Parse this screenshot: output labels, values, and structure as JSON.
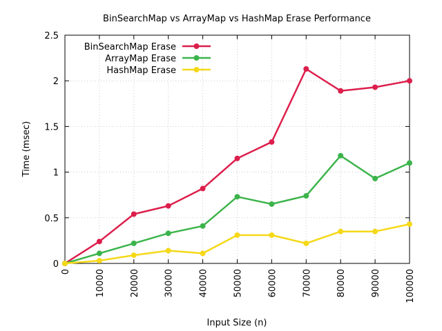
{
  "chart_data": {
    "type": "line",
    "title": "BinSearchMap vs ArrayMap vs HashMap Erase Performance",
    "xlabel": "Input Size (n)",
    "ylabel": "Time (msec)",
    "x": [
      0,
      10000,
      20000,
      30000,
      40000,
      50000,
      60000,
      70000,
      80000,
      90000,
      100000
    ],
    "x_tick_labels": [
      "0",
      "10000",
      "20000",
      "30000",
      "40000",
      "50000",
      "60000",
      "70000",
      "80000",
      "90000",
      "100000"
    ],
    "y_tick_labels": [
      "0",
      "0.5",
      "1",
      "1.5",
      "2",
      "2.5"
    ],
    "y_ticks": [
      0,
      0.5,
      1,
      1.5,
      2,
      2.5
    ],
    "xlim": [
      0,
      100000
    ],
    "ylim": [
      0,
      2.5
    ],
    "grid": true,
    "legend_position": "top-left",
    "series": [
      {
        "name": "BinSearchMap Erase",
        "color": "#dc1e4b",
        "values": [
          0,
          0.24,
          0.54,
          0.63,
          0.82,
          1.15,
          1.33,
          2.13,
          1.89,
          1.93,
          2.0
        ]
      },
      {
        "name": "ArrayMap Erase",
        "color": "#3cb44b",
        "values": [
          0,
          0.11,
          0.22,
          0.33,
          0.41,
          0.73,
          0.65,
          0.74,
          1.18,
          0.93,
          1.1
        ]
      },
      {
        "name": "HashMap Erase",
        "color": "#f5d817",
        "values": [
          0,
          0.03,
          0.09,
          0.14,
          0.11,
          0.31,
          0.31,
          0.22,
          0.35,
          0.35,
          0.43
        ]
      }
    ]
  }
}
